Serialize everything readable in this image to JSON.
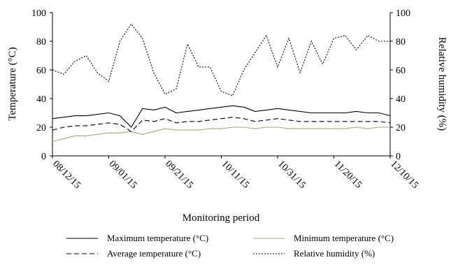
{
  "chart_data": {
    "type": "line",
    "x_label": "Monitoring period",
    "y_label": "Temperature (°C)",
    "y2_label": "Relative humidity (%)",
    "categories": [
      "08/12/15",
      null,
      null,
      null,
      null,
      "09/01/15",
      null,
      null,
      null,
      null,
      "09/21/15",
      null,
      null,
      null,
      null,
      "10/11/15",
      null,
      null,
      null,
      null,
      "10/31/15",
      null,
      null,
      null,
      null,
      "11/20/15",
      null,
      null,
      null,
      null,
      "12/10/15"
    ],
    "ylim": [
      0,
      100
    ],
    "yticks": [
      0,
      20,
      40,
      60,
      80,
      100
    ],
    "y2lim": [
      0,
      100
    ],
    "y2ticks": [
      0,
      20,
      40,
      60,
      80,
      100
    ],
    "series": [
      {
        "name": "Maximum temperature (°C)",
        "color": "#000000",
        "dash": "solid",
        "values": [
          26,
          27,
          28,
          28,
          29,
          30,
          28,
          20,
          33,
          32,
          34,
          30,
          31,
          32,
          33,
          34,
          35,
          34,
          31,
          32,
          33,
          32,
          31,
          30,
          30,
          30,
          30,
          31,
          30,
          30,
          28
        ]
      },
      {
        "name": "Minimum temperature (°C)",
        "color": "#a3a77a",
        "dash": "solid",
        "values": [
          10,
          12,
          14,
          14,
          15,
          16,
          16,
          17,
          15,
          17,
          19,
          18,
          18,
          18,
          19,
          19,
          20,
          20,
          19,
          20,
          20,
          19,
          19,
          19,
          19,
          19,
          19,
          20,
          19,
          20,
          20
        ]
      },
      {
        "name": "Average temperature (°C)",
        "color": "#000000",
        "dash": "dashed",
        "values": [
          18,
          20,
          21,
          21,
          22,
          23,
          22,
          17,
          25,
          24,
          26,
          23,
          24,
          24,
          25,
          26,
          27,
          26,
          24,
          25,
          26,
          25,
          24,
          24,
          24,
          24,
          24,
          24,
          24,
          24,
          23
        ]
      },
      {
        "name": "Relative humidity (%)",
        "color": "#000000",
        "dash": "dotted",
        "axis": "y2",
        "values": [
          60,
          57,
          66,
          70,
          58,
          52,
          80,
          92,
          82,
          58,
          43,
          47,
          78,
          62,
          62,
          45,
          42,
          60,
          72,
          84,
          62,
          82,
          58,
          80,
          64,
          82,
          84,
          74,
          84,
          80,
          80
        ]
      }
    ]
  }
}
